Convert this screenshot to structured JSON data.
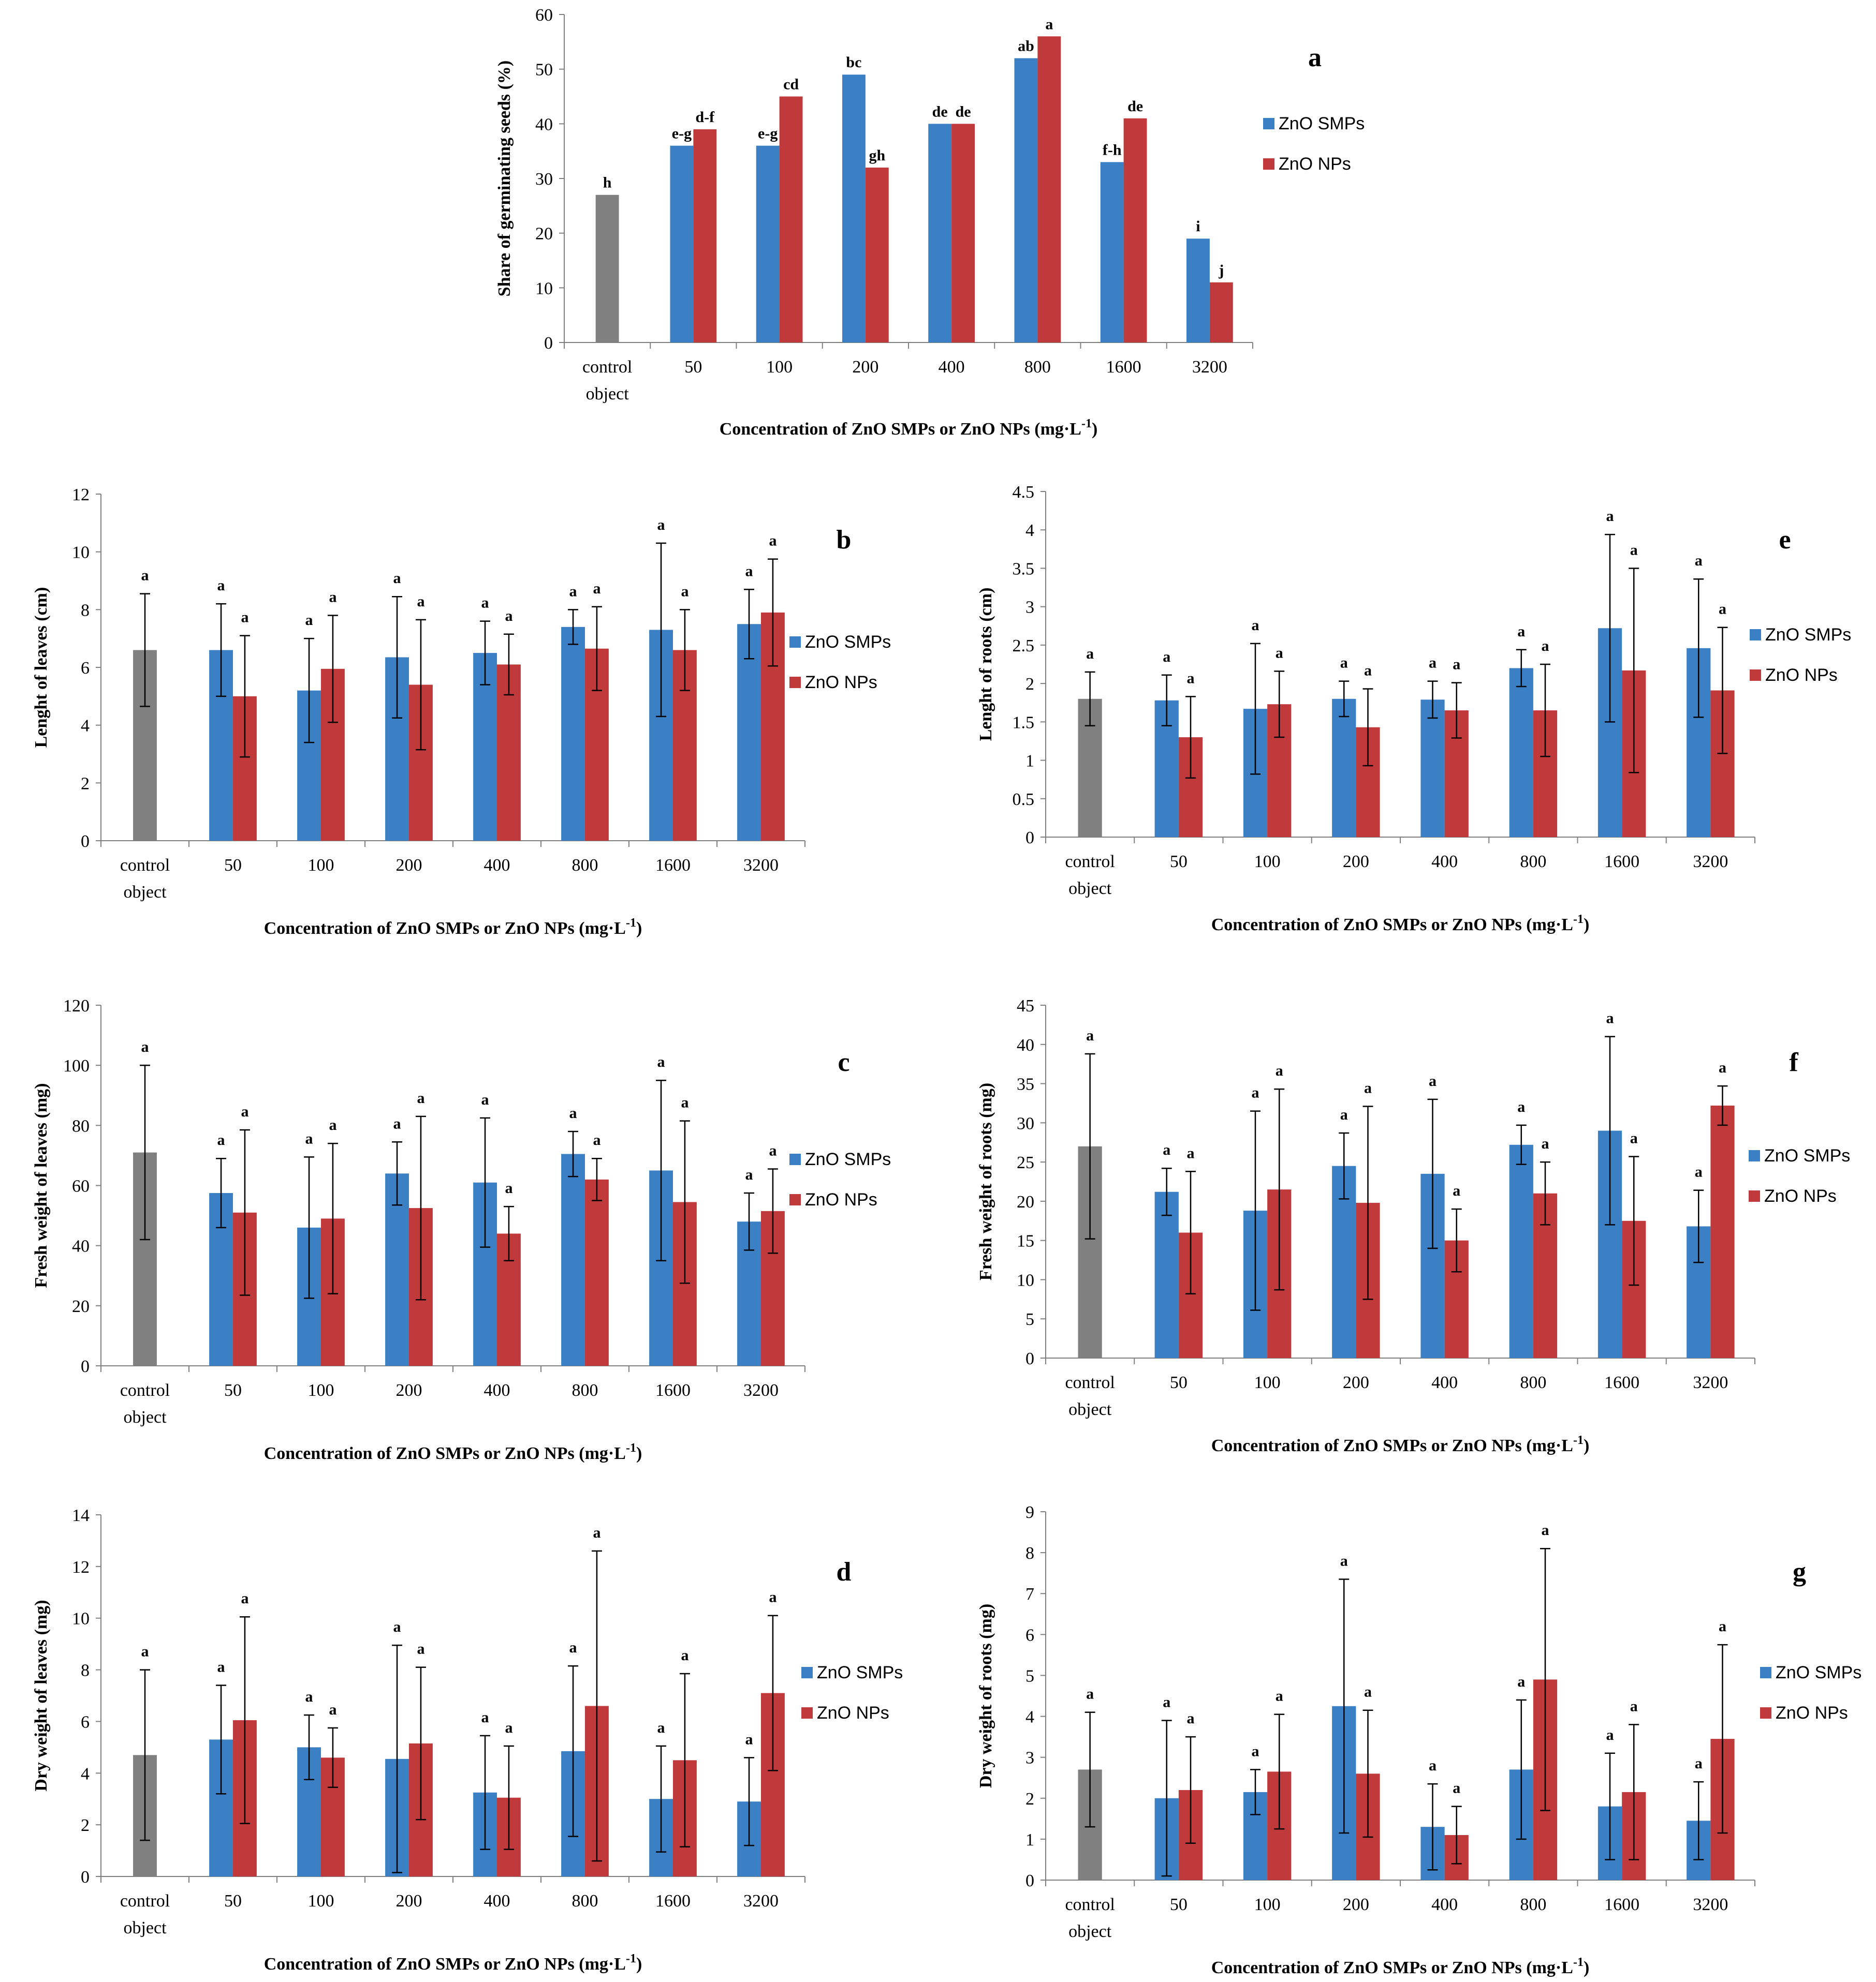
{
  "colors": {
    "control": "#808080",
    "smp": "#3b7fc4",
    "np": "#c0393b"
  },
  "chart_data": [
    {
      "id": "a",
      "type": "bar",
      "letter": "a",
      "ylabel": "Share of germinating seeds (%)",
      "xlabel": "Concentration of ZnO SMPs or ZnO NPs (mg·L",
      "xlabel_sup": "-1",
      "xlabel_end": ")",
      "ylim": [
        0,
        60
      ],
      "yticks": [
        "0",
        "10",
        "20",
        "30",
        "40",
        "50",
        "60"
      ],
      "categories": [
        "control object",
        "50",
        "100",
        "200",
        "400",
        "800",
        "1600",
        "3200"
      ],
      "legend": [
        "ZnO SMPs",
        "ZnO NPs"
      ],
      "error_bars": false,
      "series": [
        {
          "name": "control",
          "values": [
            27,
            null,
            null,
            null,
            null,
            null,
            null,
            null
          ],
          "letters": [
            "h",
            null,
            null,
            null,
            null,
            null,
            null,
            null
          ]
        },
        {
          "name": "ZnO SMPs",
          "values": [
            null,
            36,
            36,
            49,
            40,
            52,
            33,
            19
          ],
          "letters": [
            null,
            "e-g",
            "e-g",
            "bc",
            "de",
            "ab",
            "f-h",
            "i"
          ]
        },
        {
          "name": "ZnO NPs",
          "values": [
            null,
            39,
            45,
            32,
            40,
            56,
            41,
            11
          ],
          "letters": [
            null,
            "d-f",
            "cd",
            "gh",
            "de",
            "a",
            "de",
            "j"
          ]
        }
      ]
    },
    {
      "id": "b",
      "type": "bar",
      "letter": "b",
      "ylabel": "Lenght of leaves (cm)",
      "xlabel": "Concentration of ZnO SMPs or ZnO NPs (mg·L",
      "xlabel_sup": "-1",
      "xlabel_end": ")",
      "ylim": [
        0,
        12
      ],
      "yticks": [
        "0",
        "2",
        "4",
        "6",
        "8",
        "10",
        "12"
      ],
      "categories": [
        "control object",
        "50",
        "100",
        "200",
        "400",
        "800",
        "1600",
        "3200"
      ],
      "legend": [
        "ZnO SMPs",
        "ZnO NPs"
      ],
      "error_bars": true,
      "series": [
        {
          "name": "control",
          "values": [
            6.6,
            null,
            null,
            null,
            null,
            null,
            null,
            null
          ],
          "errors": [
            1.95,
            null,
            null,
            null,
            null,
            null,
            null,
            null
          ],
          "letters": [
            "a",
            null,
            null,
            null,
            null,
            null,
            null,
            null
          ]
        },
        {
          "name": "ZnO SMPs",
          "values": [
            null,
            6.6,
            5.2,
            6.35,
            6.5,
            7.4,
            7.3,
            7.5
          ],
          "errors": [
            null,
            1.6,
            1.8,
            2.1,
            1.1,
            0.6,
            3.0,
            1.2
          ],
          "letters": [
            null,
            "a",
            "a",
            "a",
            "a",
            "a",
            "a",
            "a"
          ]
        },
        {
          "name": "ZnO NPs",
          "values": [
            null,
            5.0,
            5.95,
            5.4,
            6.1,
            6.65,
            6.6,
            7.9
          ],
          "errors": [
            null,
            2.1,
            1.85,
            2.25,
            1.05,
            1.45,
            1.4,
            1.85
          ],
          "letters": [
            null,
            "a",
            "a",
            "a",
            "a",
            "a",
            "a",
            "a"
          ]
        }
      ]
    },
    {
      "id": "e",
      "type": "bar",
      "letter": "e",
      "ylabel": "Lenght of roots (cm)",
      "xlabel": "Concentration of ZnO SMPs or ZnO NPs (mg·L",
      "xlabel_sup": "-1",
      "xlabel_end": ")",
      "ylim": [
        0,
        4.5
      ],
      "yticks": [
        "0",
        "0.5",
        "1",
        "1.5",
        "2",
        "2.5",
        "3",
        "3.5",
        "4",
        "4.5"
      ],
      "categories": [
        "control object",
        "50",
        "100",
        "200",
        "400",
        "800",
        "1600",
        "3200"
      ],
      "legend": [
        "ZnO SMPs",
        "ZnO NPs"
      ],
      "error_bars": true,
      "series": [
        {
          "name": "control",
          "values": [
            1.8,
            null,
            null,
            null,
            null,
            null,
            null,
            null
          ],
          "errors": [
            0.35,
            null,
            null,
            null,
            null,
            null,
            null,
            null
          ],
          "letters": [
            "a",
            null,
            null,
            null,
            null,
            null,
            null,
            null
          ]
        },
        {
          "name": "ZnO SMPs",
          "values": [
            null,
            1.78,
            1.67,
            1.8,
            1.79,
            2.2,
            2.72,
            2.46
          ],
          "errors": [
            null,
            0.33,
            0.85,
            0.23,
            0.24,
            0.24,
            1.22,
            0.9
          ],
          "letters": [
            null,
            "a",
            "a",
            "a",
            "a",
            "a",
            "a",
            "a"
          ]
        },
        {
          "name": "ZnO NPs",
          "values": [
            null,
            1.3,
            1.73,
            1.43,
            1.65,
            1.65,
            2.17,
            1.91
          ],
          "errors": [
            null,
            0.53,
            0.43,
            0.5,
            0.36,
            0.6,
            1.33,
            0.82
          ],
          "letters": [
            null,
            "a",
            "a",
            "a",
            "a",
            "a",
            "a",
            "a"
          ]
        }
      ]
    },
    {
      "id": "c",
      "type": "bar",
      "letter": "c",
      "ylabel": "Fresh weight of leaves (mg)",
      "xlabel": "Concentration of ZnO SMPs or ZnO NPs (mg·L",
      "xlabel_sup": "-1",
      "xlabel_end": ")",
      "ylim": [
        0,
        120
      ],
      "yticks": [
        "0",
        "20",
        "40",
        "60",
        "80",
        "100",
        "120"
      ],
      "categories": [
        "control object",
        "50",
        "100",
        "200",
        "400",
        "800",
        "1600",
        "3200"
      ],
      "legend": [
        "ZnO SMPs",
        "ZnO NPs"
      ],
      "error_bars": true,
      "series": [
        {
          "name": "control",
          "values": [
            71,
            null,
            null,
            null,
            null,
            null,
            null,
            null
          ],
          "errors": [
            29,
            null,
            null,
            null,
            null,
            null,
            null,
            null
          ],
          "letters": [
            "a",
            null,
            null,
            null,
            null,
            null,
            null,
            null
          ]
        },
        {
          "name": "ZnO SMPs",
          "values": [
            null,
            57.5,
            46,
            64,
            61,
            70.5,
            65,
            48
          ],
          "errors": [
            null,
            11.5,
            23.5,
            10.5,
            21.5,
            7.5,
            30,
            9.5
          ],
          "letters": [
            null,
            "a",
            "a",
            "a",
            "a",
            "a",
            "a",
            "a"
          ]
        },
        {
          "name": "ZnO NPs",
          "values": [
            null,
            51,
            49,
            52.5,
            44,
            62,
            54.5,
            51.5
          ],
          "errors": [
            null,
            27.5,
            25,
            30.5,
            9,
            7,
            27,
            14
          ],
          "letters": [
            null,
            "a",
            "a",
            "a",
            "a",
            "a",
            "a",
            "a"
          ]
        }
      ]
    },
    {
      "id": "f",
      "type": "bar",
      "letter": "f",
      "ylabel": "Fresh weight of roots (mg)",
      "xlabel": "Concentration of ZnO SMPs or ZnO NPs (mg·L",
      "xlabel_sup": "-1",
      "xlabel_end": ")",
      "ylim": [
        0,
        45
      ],
      "yticks": [
        "0",
        "5",
        "10",
        "15",
        "20",
        "25",
        "30",
        "35",
        "40",
        "45"
      ],
      "categories": [
        "control object",
        "50",
        "100",
        "200",
        "400",
        "800",
        "1600",
        "3200"
      ],
      "legend": [
        "ZnO SMPs",
        "ZnO NPs"
      ],
      "error_bars": true,
      "series": [
        {
          "name": "control",
          "values": [
            27,
            null,
            null,
            null,
            null,
            null,
            null,
            null
          ],
          "errors": [
            11.8,
            null,
            null,
            null,
            null,
            null,
            null,
            null
          ],
          "letters": [
            "a",
            null,
            null,
            null,
            null,
            null,
            null,
            null
          ]
        },
        {
          "name": "ZnO SMPs",
          "values": [
            null,
            21.2,
            18.8,
            24.5,
            23.5,
            27.2,
            29,
            16.8
          ],
          "errors": [
            null,
            3,
            12.7,
            4.2,
            9.5,
            2.5,
            12,
            4.6
          ],
          "letters": [
            null,
            "a",
            "a",
            "a",
            "a",
            "a",
            "a",
            "a"
          ]
        },
        {
          "name": "ZnO NPs",
          "values": [
            null,
            16,
            21.5,
            19.8,
            15,
            21,
            17.5,
            32.2
          ],
          "errors": [
            null,
            7.8,
            12.8,
            12.3,
            4,
            4,
            8.2,
            2.5
          ],
          "letters": [
            null,
            "a",
            "a",
            "a",
            "a",
            "a",
            "a",
            "a"
          ]
        }
      ]
    },
    {
      "id": "d",
      "type": "bar",
      "letter": "d",
      "ylabel": "Dry weight of leaves (mg)",
      "xlabel": "Concentration of ZnO SMPs or ZnO NPs (mg·L",
      "xlabel_sup": "-1",
      "xlabel_end": ")",
      "ylim": [
        0,
        14
      ],
      "yticks": [
        "0",
        "2",
        "4",
        "6",
        "8",
        "10",
        "12",
        "14"
      ],
      "categories": [
        "control object",
        "50",
        "100",
        "200",
        "400",
        "800",
        "1600",
        "3200"
      ],
      "legend": [
        "ZnO SMPs",
        "ZnO NPs"
      ],
      "error_bars": true,
      "series": [
        {
          "name": "control",
          "values": [
            4.7,
            null,
            null,
            null,
            null,
            null,
            null,
            null
          ],
          "errors": [
            3.3,
            null,
            null,
            null,
            null,
            null,
            null,
            null
          ],
          "letters": [
            "a",
            null,
            null,
            null,
            null,
            null,
            null,
            null
          ]
        },
        {
          "name": "ZnO SMPs",
          "values": [
            null,
            5.3,
            5.0,
            4.55,
            3.25,
            4.85,
            3.0,
            2.9
          ],
          "errors": [
            null,
            2.1,
            1.25,
            4.4,
            2.2,
            3.3,
            2.05,
            1.7
          ],
          "letters": [
            null,
            "a",
            "a",
            "a",
            "a",
            "a",
            "a",
            "a"
          ]
        },
        {
          "name": "ZnO NPs",
          "values": [
            null,
            6.05,
            4.6,
            5.15,
            3.05,
            6.6,
            4.5,
            7.1
          ],
          "errors": [
            null,
            4.0,
            1.15,
            2.95,
            2.0,
            6.0,
            3.35,
            3.0
          ],
          "letters": [
            null,
            "a",
            "a",
            "a",
            "a",
            "a",
            "a",
            "a"
          ]
        }
      ]
    },
    {
      "id": "g",
      "type": "bar",
      "letter": "g",
      "ylabel": "Dry weight of roots (mg)",
      "xlabel": "Concentration of ZnO SMPs or ZnO NPs (mg·L",
      "xlabel_sup": "-1",
      "xlabel_end": ")",
      "ylim": [
        0,
        9
      ],
      "yticks": [
        "0",
        "1",
        "2",
        "3",
        "4",
        "5",
        "6",
        "7",
        "8",
        "9"
      ],
      "categories": [
        "control object",
        "50",
        "100",
        "200",
        "400",
        "800",
        "1600",
        "3200"
      ],
      "legend": [
        "ZnO SMPs",
        "ZnO NPs"
      ],
      "error_bars": true,
      "series": [
        {
          "name": "control",
          "values": [
            2.7,
            null,
            null,
            null,
            null,
            null,
            null,
            null
          ],
          "errors": [
            1.4,
            null,
            null,
            null,
            null,
            null,
            null,
            null
          ],
          "letters": [
            "a",
            null,
            null,
            null,
            null,
            null,
            null,
            null
          ]
        },
        {
          "name": "ZnO SMPs",
          "values": [
            null,
            2.0,
            2.15,
            4.25,
            1.3,
            2.7,
            1.8,
            1.45
          ],
          "errors": [
            null,
            1.9,
            0.55,
            3.1,
            1.05,
            1.7,
            1.3,
            0.95
          ],
          "letters": [
            null,
            "a",
            "a",
            "a",
            "a",
            "a",
            "a",
            "a"
          ]
        },
        {
          "name": "ZnO NPs",
          "values": [
            null,
            2.2,
            2.65,
            2.6,
            1.1,
            4.9,
            2.15,
            3.45
          ],
          "errors": [
            null,
            1.3,
            1.4,
            1.55,
            0.7,
            3.2,
            1.65,
            2.3
          ],
          "letters": [
            null,
            "a",
            "a",
            "a",
            "a",
            "a",
            "a",
            "a"
          ]
        }
      ]
    }
  ]
}
